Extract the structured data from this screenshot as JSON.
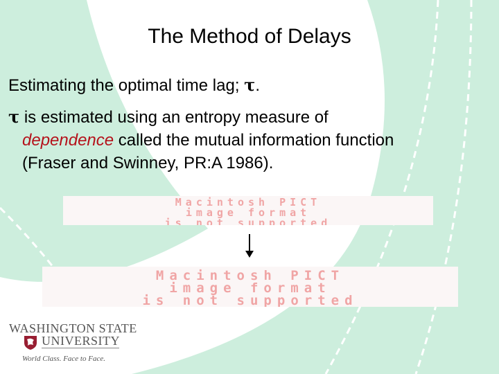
{
  "slide": {
    "title": "The Method of Delays",
    "line1_text": "Estimating the optimal time lag; ",
    "line1_symbol": "τ",
    "line1_end": ".",
    "bullet_symbol": "τ",
    "bullet_text_1": " is estimated using an entropy measure of",
    "bullet_emphasis": "dependence",
    "bullet_text_2": " called the mutual information function",
    "bullet_text_3": "(Fraser and Swinney, PR:A 1986)."
  },
  "images": [
    {
      "placeholder_line1": "Macintosh PICT",
      "placeholder_line2": "image format",
      "placeholder_line3": "is not supported"
    },
    {
      "placeholder_line1": "Macintosh PICT",
      "placeholder_line2": "image format",
      "placeholder_line3": "is not supported"
    }
  ],
  "logo": {
    "line1": "WASHINGTON STATE",
    "line2": "UNIVERSITY",
    "tagline": "World Class. Face to Face."
  },
  "colors": {
    "background_green": "#cdeedd",
    "emphasis": "#b5121b",
    "crimson": "#981e32"
  }
}
